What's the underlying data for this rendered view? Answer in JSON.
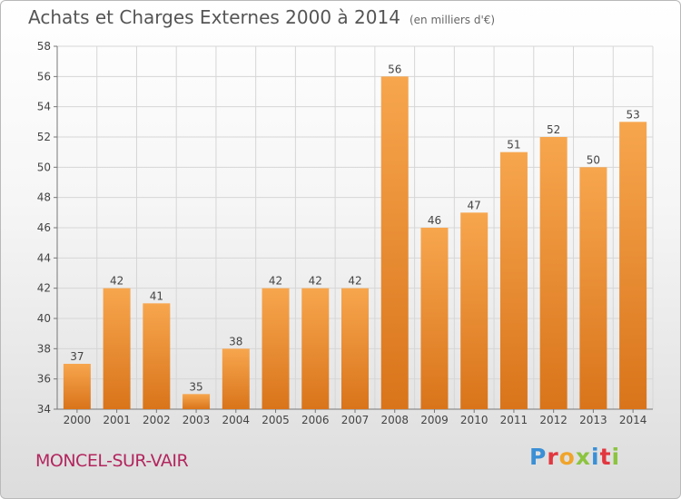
{
  "header": {
    "title": "Achats et Charges Externes 2000 à 2014",
    "subtitle": "(en milliers d'€)"
  },
  "footer": {
    "town": "MONCEL-SUR-VAIR",
    "brand": "Proxiti"
  },
  "colors": {
    "bar_light": "#f7a64e",
    "bar_dark": "#d9741a",
    "town": "#b3265e",
    "brand_letters": [
      "#3a8fd6",
      "#e2373f",
      "#f0a42a",
      "#8cc43f",
      "#3a8fd6",
      "#e2373f",
      "#8cc43f"
    ]
  },
  "chart_data": {
    "type": "bar",
    "title": "Achats et Charges Externes 2000 à 2014",
    "subtitle": "(en milliers d'€)",
    "categories": [
      "2000",
      "2001",
      "2002",
      "2003",
      "2004",
      "2005",
      "2006",
      "2007",
      "2008",
      "2009",
      "2010",
      "2011",
      "2012",
      "2013",
      "2014"
    ],
    "values": [
      37,
      42,
      41,
      35,
      38,
      42,
      42,
      42,
      56,
      46,
      47,
      51,
      52,
      50,
      53
    ],
    "ylim": [
      34,
      58
    ],
    "yticks": [
      34,
      36,
      38,
      40,
      42,
      44,
      46,
      48,
      50,
      52,
      54,
      56,
      58
    ],
    "grid": true,
    "xlabel": "",
    "ylabel": ""
  }
}
